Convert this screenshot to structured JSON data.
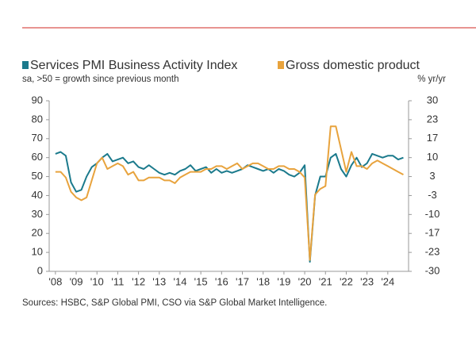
{
  "chart_data": {
    "type": "line",
    "subtitle": "sa, >50 = growth since previous month",
    "y2_label": "% yr/yr",
    "source": "Sources: HSBC, S&P Global PMI, CSO via S&P Global Market Intelligence.",
    "xlim": [
      2007.7,
      2025
    ],
    "xticks": [
      {
        "value": 2008,
        "label": "'08"
      },
      {
        "value": 2009,
        "label": "'09"
      },
      {
        "value": 2010,
        "label": "'10"
      },
      {
        "value": 2011,
        "label": "'11"
      },
      {
        "value": 2012,
        "label": "'12"
      },
      {
        "value": 2013,
        "label": "'13"
      },
      {
        "value": 2014,
        "label": "'14"
      },
      {
        "value": 2015,
        "label": "'15"
      },
      {
        "value": 2016,
        "label": "'16"
      },
      {
        "value": 2017,
        "label": "'17"
      },
      {
        "value": 2018,
        "label": "'18"
      },
      {
        "value": 2019,
        "label": "'19"
      },
      {
        "value": 2020,
        "label": "'20"
      },
      {
        "value": 2021,
        "label": "'21"
      },
      {
        "value": 2022,
        "label": "'22"
      },
      {
        "value": 2023,
        "label": "'23"
      },
      {
        "value": 2024,
        "label": "'24"
      }
    ],
    "ylim": [
      0,
      90
    ],
    "yticks": [
      0,
      10,
      20,
      30,
      40,
      50,
      60,
      70,
      80,
      90
    ],
    "y2lim": [
      -30,
      30
    ],
    "y2ticks": [
      -30,
      {
        "value": -23.333,
        "label": "-23"
      },
      {
        "value": -16.667,
        "label": "-17"
      },
      -10,
      {
        "value": -3.333,
        "label": "-3"
      },
      {
        "value": 3.333,
        "label": "3"
      },
      10,
      {
        "value": 16.667,
        "label": "17"
      },
      {
        "value": 23.333,
        "label": "23"
      },
      30
    ],
    "x": [
      2008,
      2008.25,
      2008.5,
      2008.75,
      2009,
      2009.25,
      2009.5,
      2009.75,
      2010,
      2010.25,
      2010.5,
      2010.75,
      2011,
      2011.25,
      2011.5,
      2011.75,
      2012,
      2012.25,
      2012.5,
      2012.75,
      2013,
      2013.25,
      2013.5,
      2013.75,
      2014,
      2014.25,
      2014.5,
      2014.75,
      2015,
      2015.25,
      2015.5,
      2015.75,
      2016,
      2016.25,
      2016.5,
      2016.75,
      2017,
      2017.25,
      2017.5,
      2017.75,
      2018,
      2018.25,
      2018.5,
      2018.75,
      2019,
      2019.25,
      2019.5,
      2019.75,
      2020,
      2020.25,
      2020.5,
      2020.75,
      2021,
      2021.25,
      2021.5,
      2021.75,
      2022,
      2022.25,
      2022.5,
      2022.75,
      2023,
      2023.25,
      2023.5,
      2023.75,
      2024,
      2024.25,
      2024.5,
      2024.75
    ],
    "series": [
      {
        "name": "Services PMI Business Activity Index",
        "color": "#1b7a8c",
        "values": [
          62,
          63,
          61,
          47,
          42,
          43,
          50,
          55,
          57,
          60,
          62,
          58,
          59,
          60,
          57,
          58,
          55,
          54,
          56,
          54,
          52,
          51,
          52,
          51,
          53,
          54,
          56,
          53,
          54,
          55,
          52,
          54,
          52,
          53,
          52,
          53,
          54,
          56,
          55,
          54,
          53,
          54,
          52,
          54,
          53,
          51,
          50,
          52,
          56,
          5,
          40,
          50,
          50,
          60,
          62,
          54,
          50,
          56,
          60,
          55,
          57,
          62,
          61,
          60,
          61,
          61,
          59,
          60
        ]
      },
      {
        "name": "Gross domestic product",
        "color": "#e8a33d",
        "axis": "y2",
        "values": [
          5,
          5,
          3,
          -2,
          -4,
          -5,
          -4,
          2,
          8,
          10,
          6,
          7,
          8,
          7,
          4,
          5,
          2,
          2,
          3,
          3,
          3,
          2,
          2,
          1,
          3,
          4,
          5,
          5,
          5,
          6,
          6,
          7,
          7,
          6,
          7,
          8,
          6,
          7,
          8,
          8,
          7,
          6,
          6,
          7,
          7,
          6,
          6,
          5,
          3,
          -26,
          -3,
          -1,
          0,
          21,
          21,
          13,
          5,
          12,
          7,
          7,
          6,
          8,
          9,
          8,
          7,
          6,
          5,
          4
        ]
      }
    ]
  }
}
